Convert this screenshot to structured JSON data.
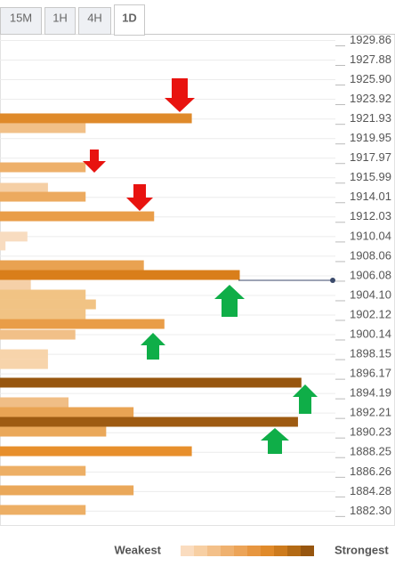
{
  "tabs": {
    "labels": [
      "15M",
      "1H",
      "4H",
      "1D"
    ],
    "active": 3
  },
  "chart_data": {
    "type": "confluence",
    "ylim": [
      1880.85,
      1930.49
    ],
    "xlim": [
      0,
      100
    ],
    "yticks": [
      1929.86,
      1927.88,
      {
        "value": 1925.9,
        "label": "1925.90"
      },
      1923.92,
      1921.93,
      1919.95,
      1917.97,
      1915.99,
      1914.01,
      1912.03,
      1910.04,
      1908.06,
      1906.08,
      {
        "value": 1904.1,
        "label": "1904.10"
      },
      1902.12,
      1900.14,
      1898.15,
      1896.17,
      1894.19,
      1892.21,
      1890.23,
      1888.25,
      1886.26,
      1884.28,
      {
        "value": 1882.3,
        "label": "1882.30"
      }
    ],
    "grid": true,
    "levels": [
      1921.95,
      1920.96,
      1917.0,
      1914.93,
      1914.03,
      1912.05,
      1910.0,
      1909.1,
      1907.11,
      1906.12,
      1905.13,
      1904.14,
      1903.15,
      1902.16,
      1901.17,
      1900.09,
      1898.11,
      1897.12,
      1895.24,
      1893.26,
      1892.27,
      1891.28,
      1890.29,
      1888.31,
      1886.33,
      1884.36,
      1882.38
    ],
    "values": [
      56,
      25,
      25,
      14,
      25,
      45,
      8,
      1.6,
      42,
      70,
      9,
      25,
      28,
      25,
      48,
      22,
      14,
      14,
      88,
      20,
      39,
      87,
      31,
      56,
      25,
      39,
      25
    ],
    "colors": [
      "#df8a2a",
      "#f1c088",
      "#eeb06a",
      "#f5cfa5",
      "#ecaa5f",
      "#e99d48",
      "#f8dcc0",
      "#f8dcc0",
      "#e9a251",
      "#d97e1a",
      "#f5d0a8",
      "#f1c384",
      "#f1c384",
      "#f1c384",
      "#e99d48",
      "#f1c088",
      "#f7d4ab",
      "#f7d4ab",
      "#97560f",
      "#f0be86",
      "#e9a454",
      "#9e5b12",
      "#eaa85a",
      "#e78f2c",
      "#edaf65",
      "#eaa85a",
      "#edaf65"
    ],
    "current_price": 1905.58,
    "price_color": "#3b4a6b",
    "legend": {
      "low": "Weakest",
      "high": "Strongest",
      "colors": [
        "#fadcbf",
        "#f7cfa3",
        "#f3c089",
        "#efb16f",
        "#eca458",
        "#e79640",
        "#e08a2a",
        "#cd7b1d",
        "#b36a15",
        "#97560f"
      ]
    }
  }
}
